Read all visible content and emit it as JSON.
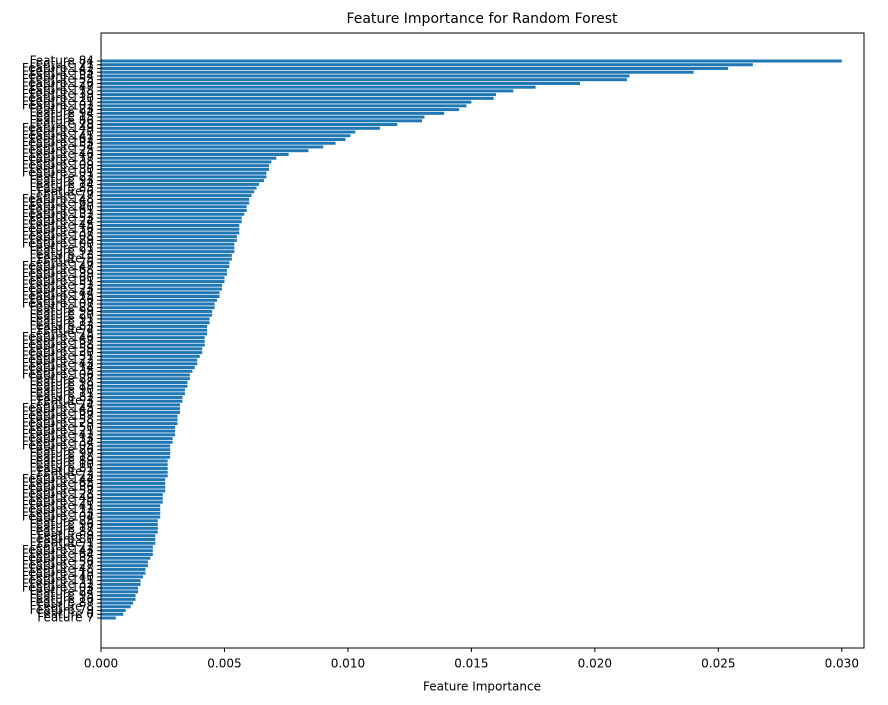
{
  "chart_data": {
    "type": "barh",
    "title": "Feature Importance for Random Forest",
    "x_label": "Feature Importance",
    "color": "#1f77b4",
    "categories": [
      "Feature 84",
      "Feature 71",
      "Feature 142",
      "Feature 63",
      "Feature 134",
      "Feature 55",
      "Feature 126",
      "Feature 47",
      "Feature 118",
      "Feature 39",
      "Feature 110",
      "Feature 31",
      "Feature 102",
      "Feature 23",
      "Feature 94",
      "Feature 15",
      "Feature 86",
      "Feature 78",
      "Feature 149",
      "Feature 70",
      "Feature 141",
      "Feature 62",
      "Feature 133",
      "Feature 54",
      "Feature 125",
      "Feature 46",
      "Feature 117",
      "Feature 38",
      "Feature 109",
      "Feature 30",
      "Feature 101",
      "Feature 22",
      "Feature 93",
      "Feature 14",
      "Feature 85",
      "Feature 6",
      "Feature 77",
      "Feature 148",
      "Feature 69",
      "Feature 140",
      "Feature 61",
      "Feature 132",
      "Feature 53",
      "Feature 124",
      "Feature 45",
      "Feature 116",
      "Feature 37",
      "Feature 108",
      "Feature 29",
      "Feature 100",
      "Feature 21",
      "Feature 92",
      "Feature 13",
      "Feature 5",
      "Feature 76",
      "Feature 147",
      "Feature 68",
      "Feature 139",
      "Feature 60",
      "Feature 131",
      "Feature 52",
      "Feature 123",
      "Feature 44",
      "Feature 115",
      "Feature 36",
      "Feature 107",
      "Feature 28",
      "Feature 99",
      "Feature 20",
      "Feature 91",
      "Feature 12",
      "Feature 83",
      "Feature 4",
      "Feature 75",
      "Feature 146",
      "Feature 67",
      "Feature 138",
      "Feature 59",
      "Feature 130",
      "Feature 51",
      "Feature 122",
      "Feature 43",
      "Feature 114",
      "Feature 35",
      "Feature 106",
      "Feature 27",
      "Feature 98",
      "Feature 19",
      "Feature 90",
      "Feature 11",
      "Feature 82",
      "Feature 3",
      "Feature 74",
      "Feature 145",
      "Feature 66",
      "Feature 137",
      "Feature 58",
      "Feature 129",
      "Feature 50",
      "Feature 121",
      "Feature 42",
      "Feature 113",
      "Feature 34",
      "Feature 105",
      "Feature 26",
      "Feature 97",
      "Feature 18",
      "Feature 89",
      "Feature 10",
      "Feature 81",
      "Feature 2",
      "Feature 73",
      "Feature 144",
      "Feature 65",
      "Feature 136",
      "Feature 57",
      "Feature 128",
      "Feature 49",
      "Feature 120",
      "Feature 41",
      "Feature 112",
      "Feature 33",
      "Feature 104",
      "Feature 25",
      "Feature 96",
      "Feature 17",
      "Feature 88",
      "Feature 9",
      "Feature 80",
      "Feature 1",
      "Feature 72",
      "Feature 143",
      "Feature 64",
      "Feature 135",
      "Feature 56",
      "Feature 127",
      "Feature 48",
      "Feature 119",
      "Feature 40",
      "Feature 111",
      "Feature 32",
      "Feature 103",
      "Feature 24",
      "Feature 95",
      "Feature 16",
      "Feature 87",
      "Feature 8",
      "Feature 79",
      "Feature 0",
      "Feature 7"
    ],
    "values": [
      0.03,
      0.0264,
      0.0254,
      0.024,
      0.0214,
      0.0213,
      0.0194,
      0.0176,
      0.0167,
      0.016,
      0.0159,
      0.015,
      0.0148,
      0.0145,
      0.0139,
      0.0131,
      0.013,
      0.012,
      0.0113,
      0.0103,
      0.0101,
      0.0099,
      0.0095,
      0.009,
      0.0084,
      0.0076,
      0.0071,
      0.0069,
      0.0068,
      0.0068,
      0.0067,
      0.0067,
      0.0066,
      0.0064,
      0.0063,
      0.0062,
      0.0061,
      0.006,
      0.006,
      0.0059,
      0.0059,
      0.0058,
      0.0057,
      0.0057,
      0.0056,
      0.0056,
      0.0056,
      0.0055,
      0.0055,
      0.0054,
      0.0054,
      0.0054,
      0.0053,
      0.0053,
      0.0052,
      0.0052,
      0.0051,
      0.0051,
      0.005,
      0.005,
      0.0049,
      0.0049,
      0.0048,
      0.0048,
      0.0047,
      0.0046,
      0.0046,
      0.0045,
      0.0045,
      0.0044,
      0.0044,
      0.0043,
      0.0043,
      0.0043,
      0.0042,
      0.0042,
      0.0042,
      0.0041,
      0.0041,
      0.004,
      0.0039,
      0.0039,
      0.0038,
      0.0037,
      0.0036,
      0.0036,
      0.0035,
      0.0035,
      0.0034,
      0.0034,
      0.0033,
      0.0033,
      0.0032,
      0.0032,
      0.0032,
      0.0031,
      0.0031,
      0.0031,
      0.003,
      0.003,
      0.003,
      0.0029,
      0.0029,
      0.0028,
      0.0028,
      0.0028,
      0.0028,
      0.0027,
      0.0027,
      0.0027,
      0.0027,
      0.0027,
      0.0026,
      0.0026,
      0.0026,
      0.0026,
      0.0025,
      0.0025,
      0.0025,
      0.0024,
      0.0024,
      0.0024,
      0.0024,
      0.0023,
      0.0023,
      0.0023,
      0.0023,
      0.0022,
      0.0022,
      0.0022,
      0.0021,
      0.0021,
      0.0021,
      0.002,
      0.0019,
      0.0019,
      0.0018,
      0.0018,
      0.0017,
      0.0016,
      0.0016,
      0.0015,
      0.0015,
      0.0014,
      0.0014,
      0.0013,
      0.0012,
      0.001,
      0.0009,
      0.0006
    ],
    "xlim": [
      0,
      0.0309
    ],
    "xticks": [
      {
        "value": 0,
        "label": "0.000"
      },
      {
        "value": 0.005,
        "label": "0.005"
      },
      {
        "value": 0.01,
        "label": "0.010"
      },
      {
        "value": 0.015,
        "label": "0.015"
      },
      {
        "value": 0.02,
        "label": "0.020"
      },
      {
        "value": 0.025,
        "label": "0.025"
      },
      {
        "value": 0.03,
        "label": "0.030"
      }
    ]
  }
}
